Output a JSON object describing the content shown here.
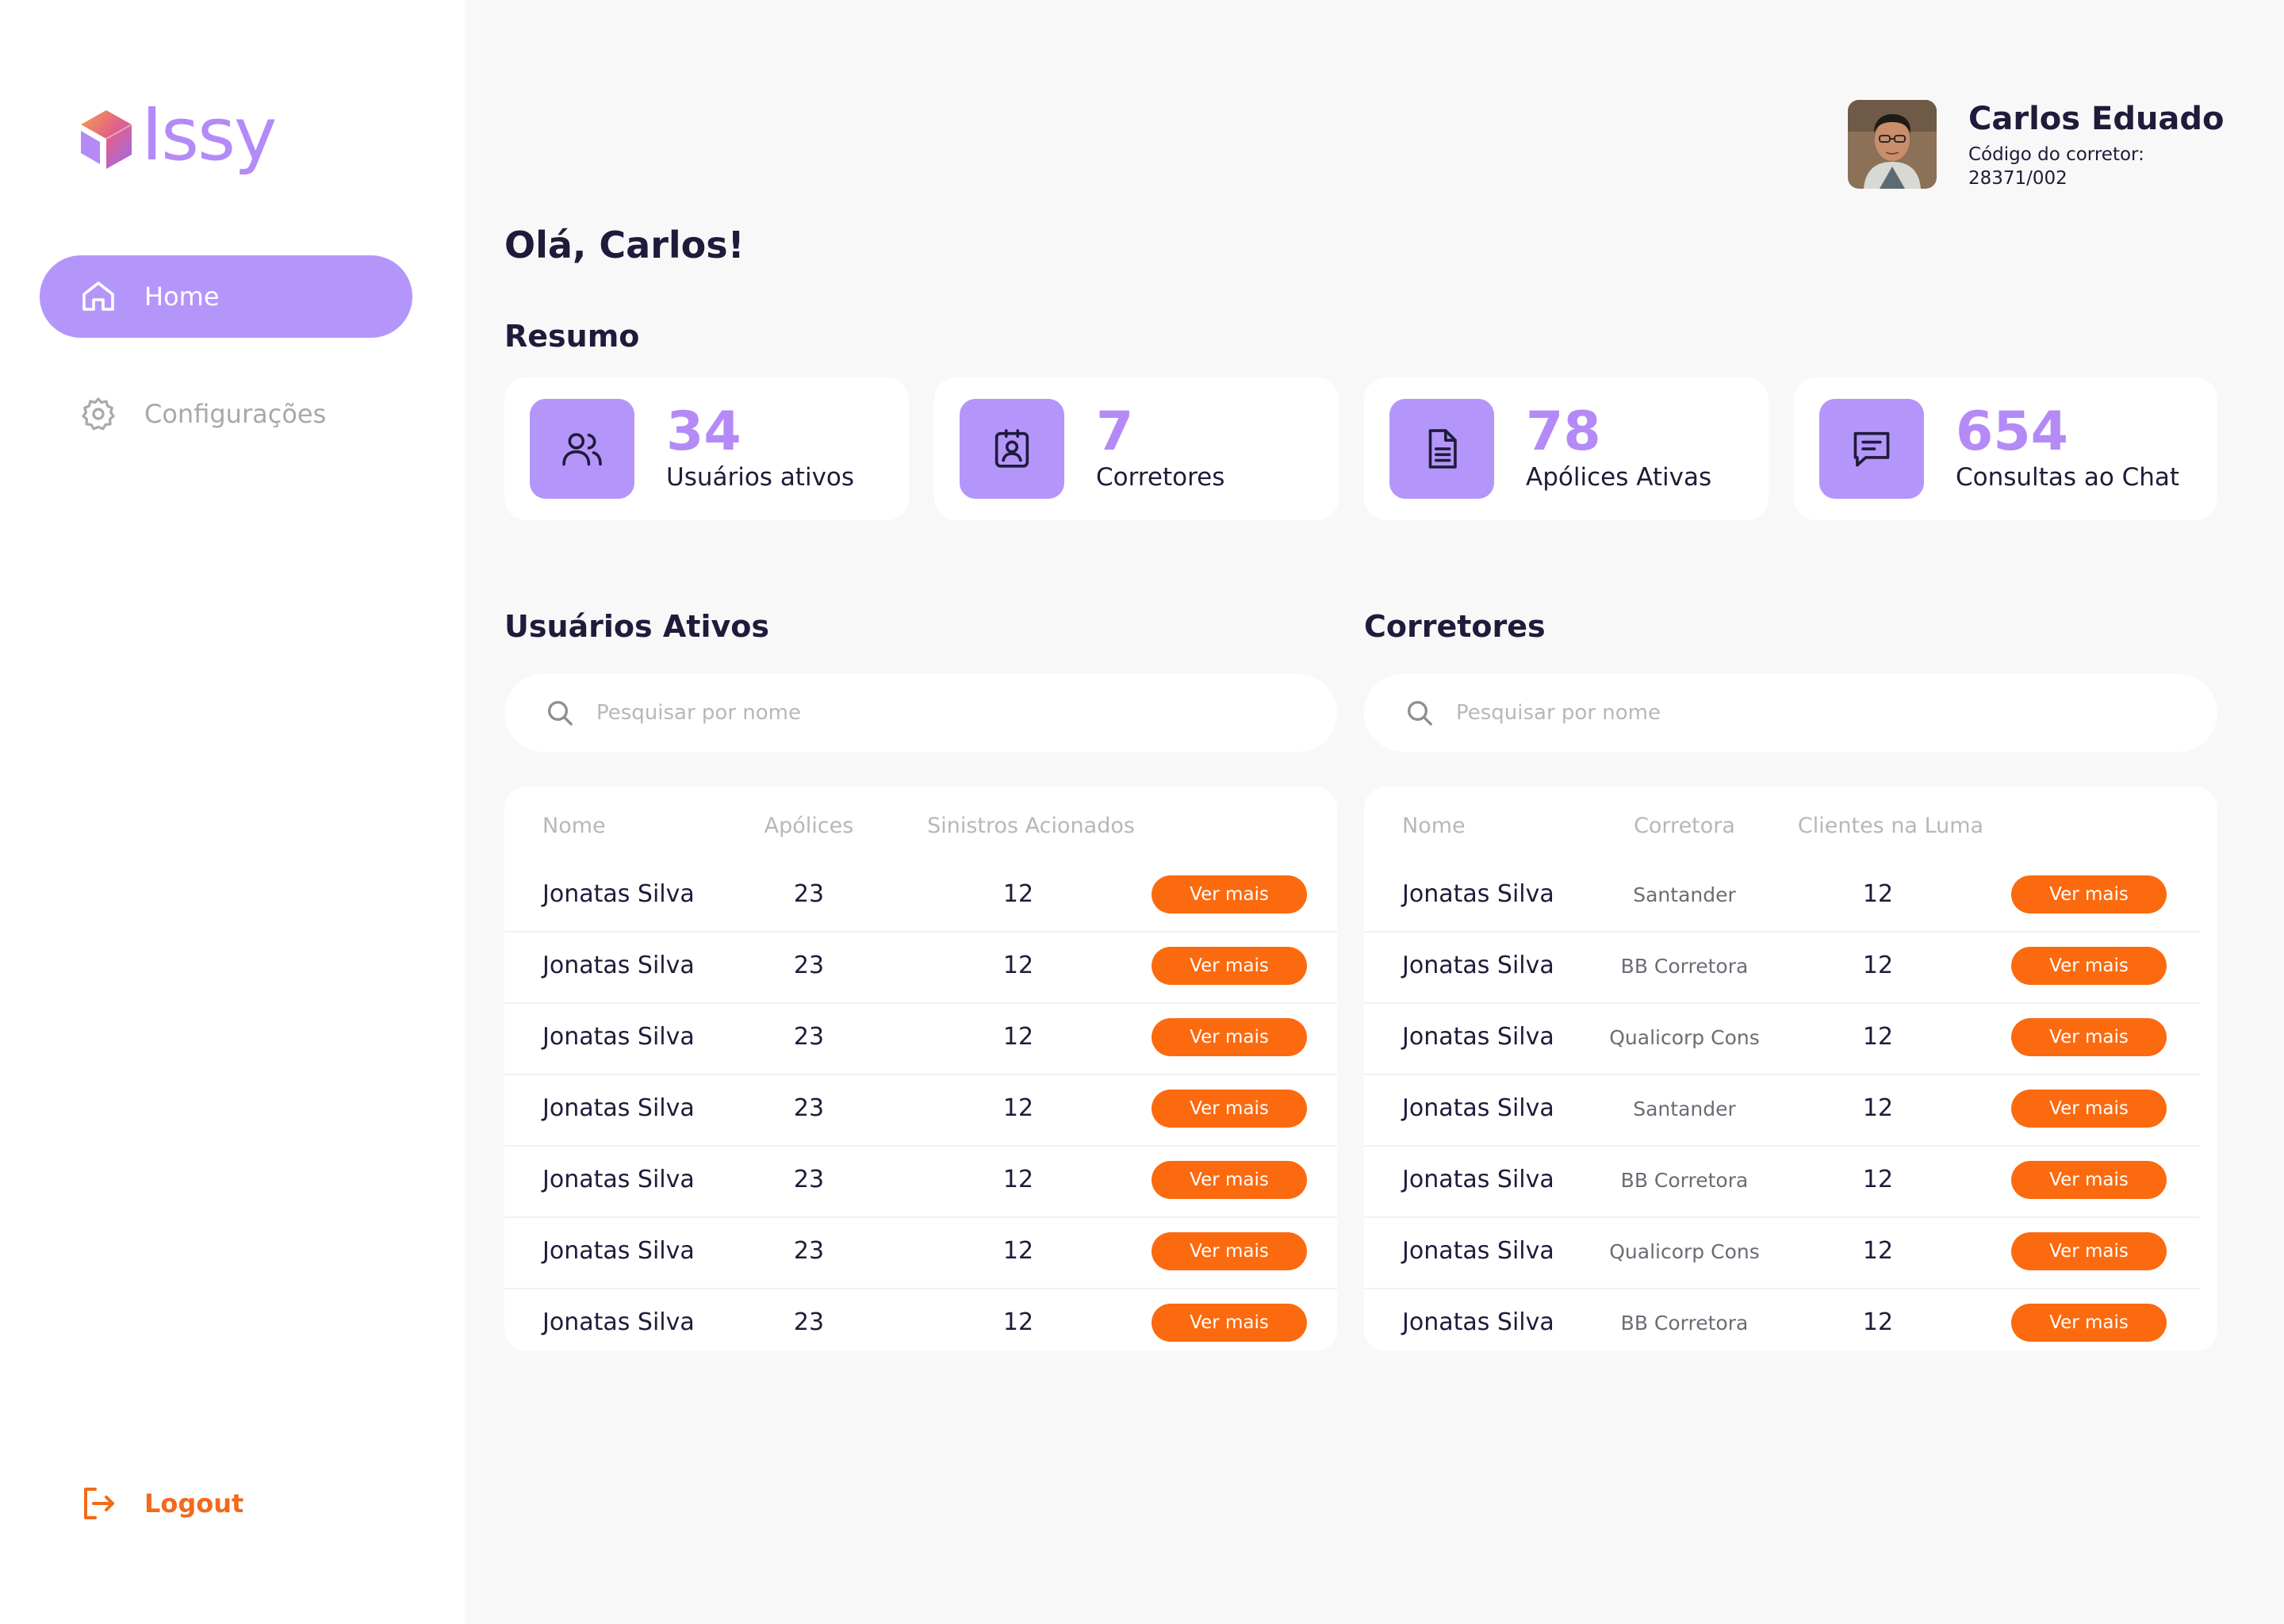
{
  "app": {
    "name": "Issy"
  },
  "sidebar": {
    "items": [
      {
        "label": "Home",
        "icon": "home-icon",
        "active": true
      },
      {
        "label": "Configurações",
        "icon": "gear-icon",
        "active": false
      }
    ],
    "logout_label": "Logout"
  },
  "profile": {
    "name": "Carlos Eduado",
    "code_label": "Código do corretor:",
    "code_value": "28371/002"
  },
  "greeting": "Olá, Carlos!",
  "summary": {
    "title": "Resumo",
    "cards": [
      {
        "value": "34",
        "label": "Usuários ativos",
        "icon": "users-icon"
      },
      {
        "value": "7",
        "label": "Corretores",
        "icon": "id-badge-icon"
      },
      {
        "value": "78",
        "label": "Apólices Ativas",
        "icon": "document-icon"
      },
      {
        "value": "654",
        "label": "Consultas ao Chat",
        "icon": "chat-icon"
      }
    ]
  },
  "usuarios": {
    "title": "Usuários Ativos",
    "search_placeholder": "Pesquisar por nome",
    "columns": [
      "Nome",
      "Apólices",
      "Sinistros Acionados"
    ],
    "button_label": "Ver mais",
    "rows": [
      {
        "nome": "Jonatas Silva",
        "apolices": "23",
        "sinistros": "12"
      },
      {
        "nome": "Jonatas Silva",
        "apolices": "23",
        "sinistros": "12"
      },
      {
        "nome": "Jonatas Silva",
        "apolices": "23",
        "sinistros": "12"
      },
      {
        "nome": "Jonatas Silva",
        "apolices": "23",
        "sinistros": "12"
      },
      {
        "nome": "Jonatas Silva",
        "apolices": "23",
        "sinistros": "12"
      },
      {
        "nome": "Jonatas Silva",
        "apolices": "23",
        "sinistros": "12"
      },
      {
        "nome": "Jonatas Silva",
        "apolices": "23",
        "sinistros": "12"
      }
    ]
  },
  "corretores": {
    "title": "Corretores",
    "search_placeholder": "Pesquisar por nome",
    "columns": [
      "Nome",
      "Corretora",
      "Clientes na Luma"
    ],
    "button_label": "Ver mais",
    "rows": [
      {
        "nome": "Jonatas Silva",
        "corretora": "Santander",
        "clientes": "12"
      },
      {
        "nome": "Jonatas Silva",
        "corretora": "BB Corretora",
        "clientes": "12"
      },
      {
        "nome": "Jonatas Silva",
        "corretora": "Qualicorp Cons",
        "clientes": "12"
      },
      {
        "nome": "Jonatas Silva",
        "corretora": "Santander",
        "clientes": "12"
      },
      {
        "nome": "Jonatas Silva",
        "corretora": "BB Corretora",
        "clientes": "12"
      },
      {
        "nome": "Jonatas Silva",
        "corretora": "Qualicorp Cons",
        "clientes": "12"
      },
      {
        "nome": "Jonatas Silva",
        "corretora": "BB Corretora",
        "clientes": "12"
      }
    ]
  },
  "colors": {
    "accent": "#b496fa",
    "button": "#fb6a0f",
    "logout": "#f26a1b",
    "text": "#1f1b3a"
  }
}
